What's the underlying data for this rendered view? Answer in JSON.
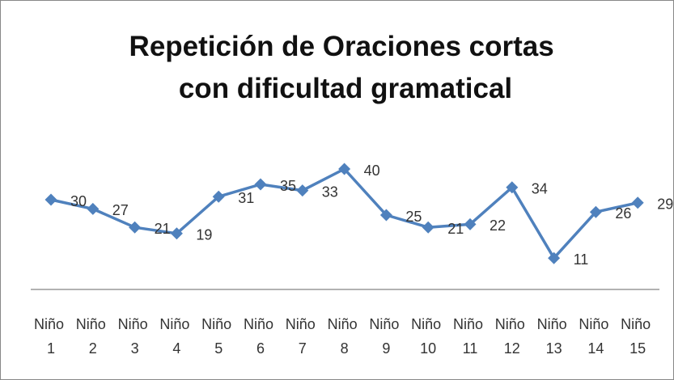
{
  "chart_data": {
    "type": "line",
    "title": "Repetición de Oraciones cortas con dificultad gramatical",
    "categories": [
      "Niño 1",
      "Niño 2",
      "Niño 3",
      "Niño 4",
      "Niño 5",
      "Niño 6",
      "Niño 7",
      "Niño 8",
      "Niño 9",
      "Niño 10",
      "Niño 11",
      "Niño 12",
      "Niño 13",
      "Niño 14",
      "Niño 15"
    ],
    "values": [
      30,
      27,
      21,
      19,
      31,
      35,
      33,
      40,
      25,
      21,
      22,
      34,
      11,
      26,
      29
    ],
    "color": "#4f81bd",
    "ylim": [
      0,
      45
    ]
  }
}
